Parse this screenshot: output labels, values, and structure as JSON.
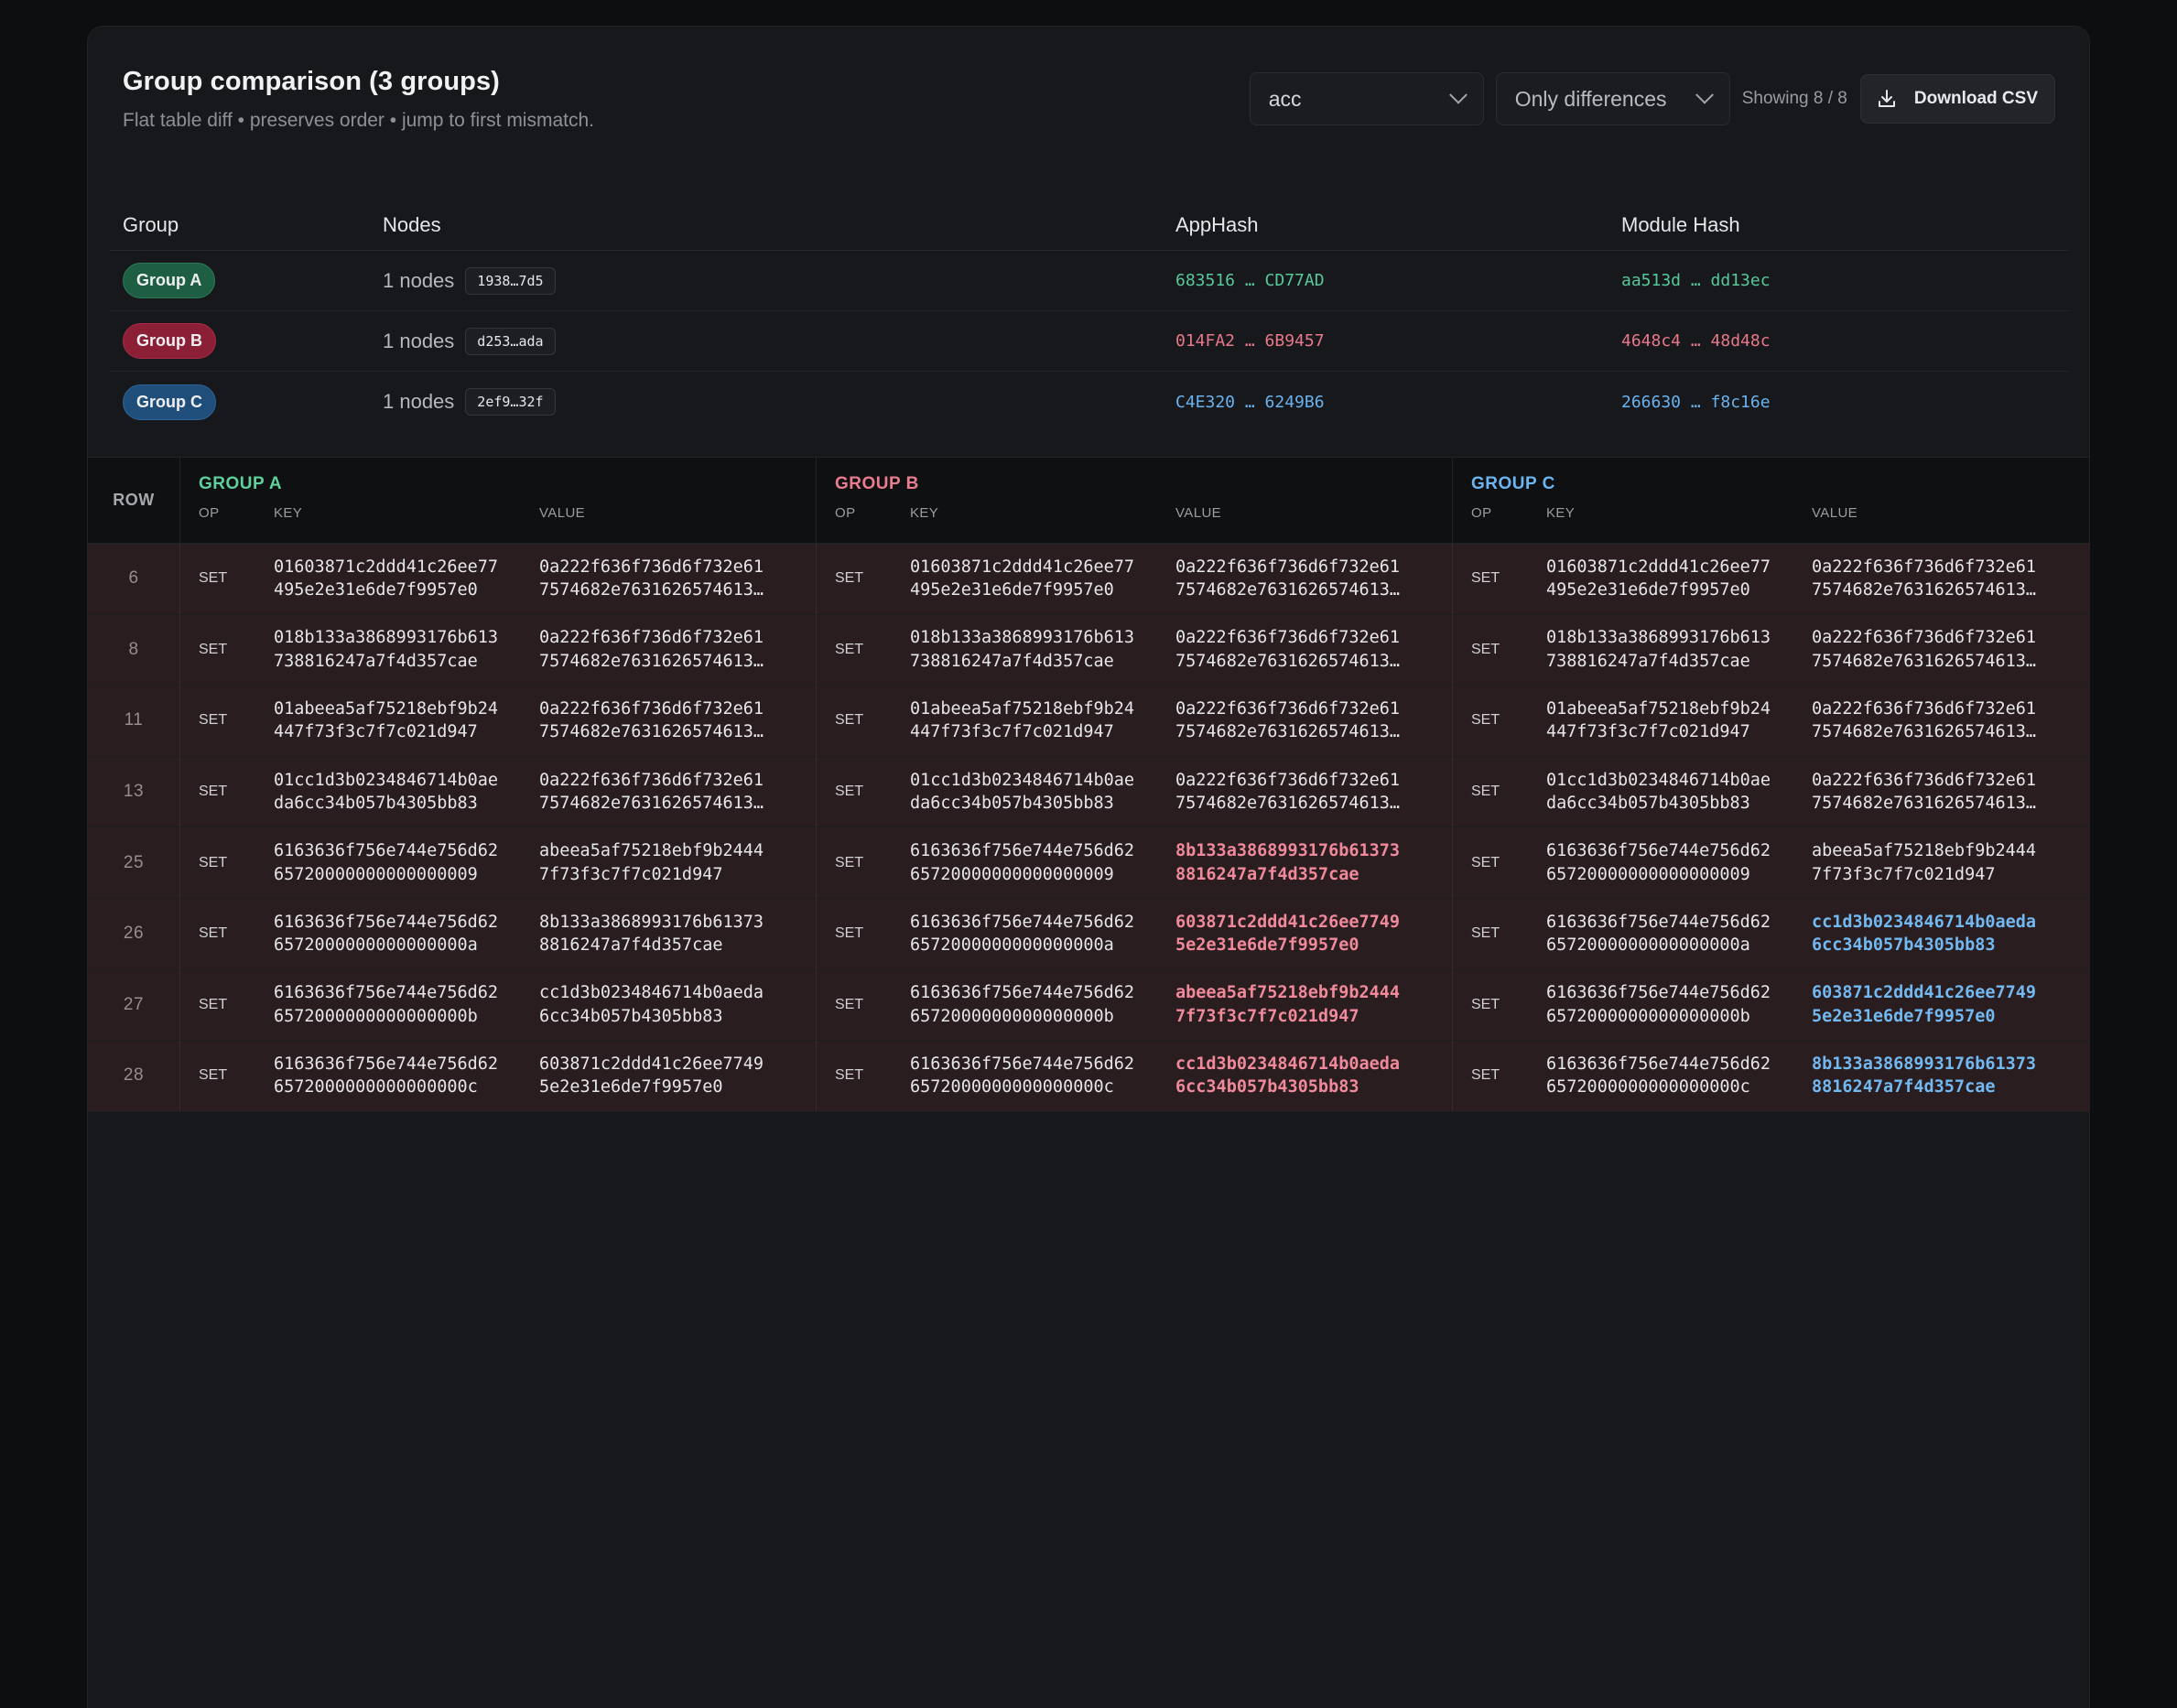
{
  "header": {
    "title": "Group comparison (3 groups)",
    "subtitle": "Flat table diff • preserves order • jump to first mismatch.",
    "filter_value": "acc",
    "mode_value": "Only differences",
    "showing": "Showing 8 / 8",
    "download_label": "Download CSV"
  },
  "summary": {
    "headers": {
      "group": "Group",
      "nodes": "Nodes",
      "app_hash": "AppHash",
      "module_hash": "Module Hash"
    },
    "rows": [
      {
        "group": "Group A",
        "nodes": "1 nodes",
        "node_id": "1938…7d5",
        "app_hash": "683516 … CD77AD",
        "module_hash": "aa513d … dd13ec"
      },
      {
        "group": "Group B",
        "nodes": "1 nodes",
        "node_id": "d253…ada",
        "app_hash": "014FA2 … 6B9457",
        "module_hash": "4648c4 … 48d48c"
      },
      {
        "group": "Group C",
        "nodes": "1 nodes",
        "node_id": "2ef9…32f",
        "app_hash": "C4E320 … 6249B6",
        "module_hash": "266630 … f8c16e"
      }
    ]
  },
  "diff": {
    "row_header": "ROW",
    "groups": [
      "GROUP A",
      "GROUP B",
      "GROUP C"
    ],
    "sub_headers": {
      "op": "OP",
      "key": "KEY",
      "value": "VALUE"
    },
    "colors": {
      "group_a": "#5fcf9c",
      "group_b": "#ea7c8f",
      "group_c": "#6cb5f0",
      "diff_row_bg": "#2a1d20"
    },
    "rows": [
      {
        "row": "6",
        "a": {
          "op": "SET",
          "key": "01603871c2ddd41c26ee77\n495e2e31e6de7f9957e0",
          "value": "0a222f636f736d6f732e61\n7574682e7631626574613…"
        },
        "b": {
          "op": "SET",
          "key": "01603871c2ddd41c26ee77\n495e2e31e6de7f9957e0",
          "value": "0a222f636f736d6f732e61\n7574682e7631626574613…"
        },
        "c": {
          "op": "SET",
          "key": "01603871c2ddd41c26ee77\n495e2e31e6de7f9957e0",
          "value": "0a222f636f736d6f732e61\n7574682e7631626574613…"
        }
      },
      {
        "row": "8",
        "a": {
          "op": "SET",
          "key": "018b133a3868993176b613\n738816247a7f4d357cae",
          "value": "0a222f636f736d6f732e61\n7574682e7631626574613…"
        },
        "b": {
          "op": "SET",
          "key": "018b133a3868993176b613\n738816247a7f4d357cae",
          "value": "0a222f636f736d6f732e61\n7574682e7631626574613…"
        },
        "c": {
          "op": "SET",
          "key": "018b133a3868993176b613\n738816247a7f4d357cae",
          "value": "0a222f636f736d6f732e61\n7574682e7631626574613…"
        }
      },
      {
        "row": "11",
        "a": {
          "op": "SET",
          "key": "01abeea5af75218ebf9b24\n447f73f3c7f7c021d947",
          "value": "0a222f636f736d6f732e61\n7574682e7631626574613…"
        },
        "b": {
          "op": "SET",
          "key": "01abeea5af75218ebf9b24\n447f73f3c7f7c021d947",
          "value": "0a222f636f736d6f732e61\n7574682e7631626574613…"
        },
        "c": {
          "op": "SET",
          "key": "01abeea5af75218ebf9b24\n447f73f3c7f7c021d947",
          "value": "0a222f636f736d6f732e61\n7574682e7631626574613…"
        }
      },
      {
        "row": "13",
        "a": {
          "op": "SET",
          "key": "01cc1d3b0234846714b0ae\nda6cc34b057b4305bb83",
          "value": "0a222f636f736d6f732e61\n7574682e7631626574613…"
        },
        "b": {
          "op": "SET",
          "key": "01cc1d3b0234846714b0ae\nda6cc34b057b4305bb83",
          "value": "0a222f636f736d6f732e61\n7574682e7631626574613…"
        },
        "c": {
          "op": "SET",
          "key": "01cc1d3b0234846714b0ae\nda6cc34b057b4305bb83",
          "value": "0a222f636f736d6f732e61\n7574682e7631626574613…"
        }
      },
      {
        "row": "25",
        "a": {
          "op": "SET",
          "key": "6163636f756e744e756d62\n65720000000000000009",
          "value": "abeea5af75218ebf9b2444\n7f73f3c7f7c021d947"
        },
        "b": {
          "op": "SET",
          "key": "6163636f756e744e756d62\n65720000000000000009",
          "value": "8b133a3868993176b61373\n8816247a7f4d357cae"
        },
        "c": {
          "op": "SET",
          "key": "6163636f756e744e756d62\n65720000000000000009",
          "value": "abeea5af75218ebf9b2444\n7f73f3c7f7c021d947"
        }
      },
      {
        "row": "26",
        "a": {
          "op": "SET",
          "key": "6163636f756e744e756d62\n6572000000000000000a",
          "value": "8b133a3868993176b61373\n8816247a7f4d357cae"
        },
        "b": {
          "op": "SET",
          "key": "6163636f756e744e756d62\n6572000000000000000a",
          "value": "603871c2ddd41c26ee7749\n5e2e31e6de7f9957e0"
        },
        "c": {
          "op": "SET",
          "key": "6163636f756e744e756d62\n6572000000000000000a",
          "value": "cc1d3b0234846714b0aeda\n6cc34b057b4305bb83"
        }
      },
      {
        "row": "27",
        "a": {
          "op": "SET",
          "key": "6163636f756e744e756d62\n6572000000000000000b",
          "value": "cc1d3b0234846714b0aeda\n6cc34b057b4305bb83"
        },
        "b": {
          "op": "SET",
          "key": "6163636f756e744e756d62\n6572000000000000000b",
          "value": "abeea5af75218ebf9b2444\n7f73f3c7f7c021d947"
        },
        "c": {
          "op": "SET",
          "key": "6163636f756e744e756d62\n6572000000000000000b",
          "value": "603871c2ddd41c26ee7749\n5e2e31e6de7f9957e0"
        }
      },
      {
        "row": "28",
        "a": {
          "op": "SET",
          "key": "6163636f756e744e756d62\n6572000000000000000c",
          "value": "603871c2ddd41c26ee7749\n5e2e31e6de7f9957e0"
        },
        "b": {
          "op": "SET",
          "key": "6163636f756e744e756d62\n6572000000000000000c",
          "value": "cc1d3b0234846714b0aeda\n6cc34b057b4305bb83"
        },
        "c": {
          "op": "SET",
          "key": "6163636f756e744e756d62\n6572000000000000000c",
          "value": "8b133a3868993176b61373\n8816247a7f4d357cae"
        }
      }
    ]
  }
}
